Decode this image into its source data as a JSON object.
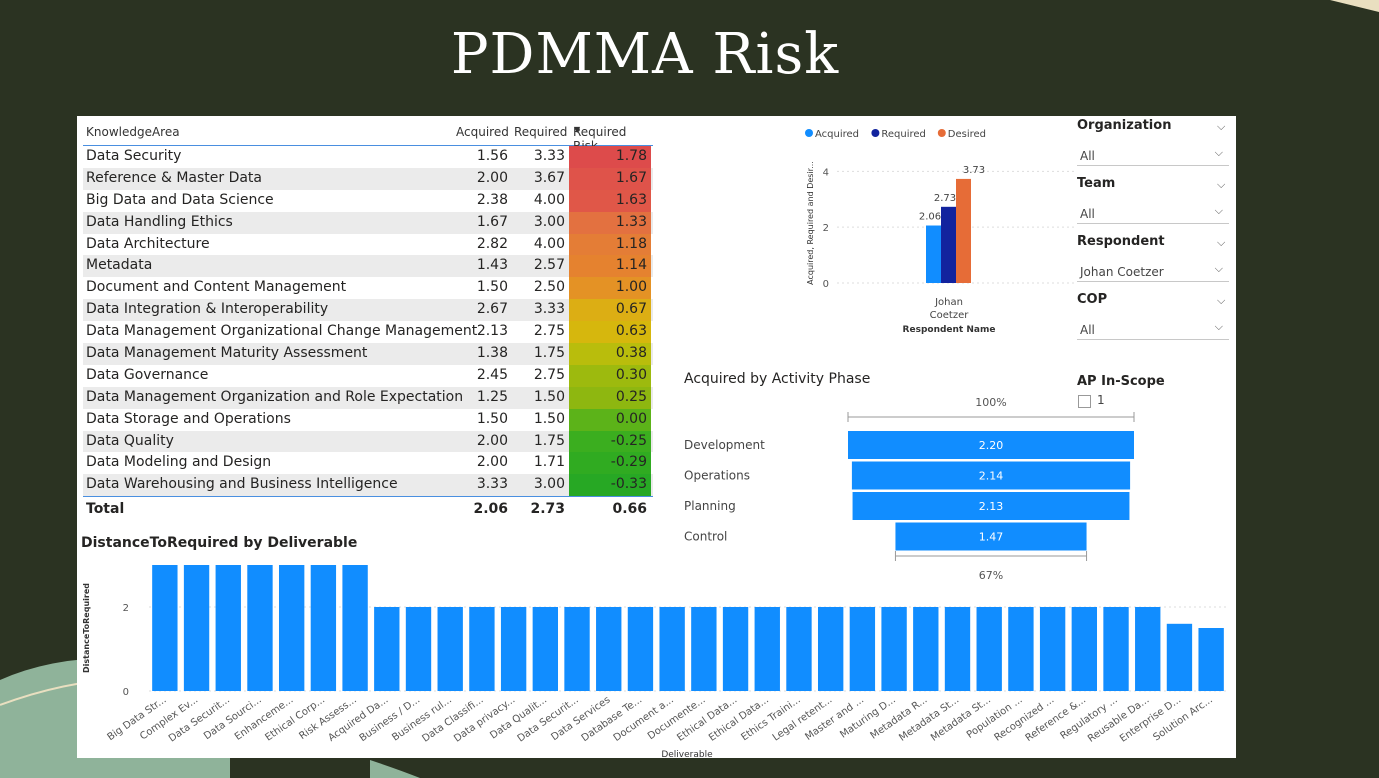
{
  "slide": {
    "title": "PDMMA Risk"
  },
  "table": {
    "headers": {
      "area": "KnowledgeArea",
      "acquired": "Acquired",
      "required": "Required",
      "risk": "Required Risk"
    },
    "rows": [
      {
        "area": "Data Security",
        "acquired": "1.56",
        "required": "3.33",
        "risk": "1.78",
        "color": "#dd4b4b"
      },
      {
        "area": "Reference & Master Data",
        "acquired": "2.00",
        "required": "3.67",
        "risk": "1.67",
        "color": "#df534a"
      },
      {
        "area": "Big Data and Data Science",
        "acquired": "2.38",
        "required": "4.00",
        "risk": "1.63",
        "color": "#e05748"
      },
      {
        "area": "Data Handling Ethics",
        "acquired": "1.67",
        "required": "3.00",
        "risk": "1.33",
        "color": "#e37140"
      },
      {
        "area": "Data Architecture",
        "acquired": "2.82",
        "required": "4.00",
        "risk": "1.18",
        "color": "#e47d36"
      },
      {
        "area": "Metadata",
        "acquired": "1.43",
        "required": "2.57",
        "risk": "1.14",
        "color": "#e5822f"
      },
      {
        "area": "Document and Content Management",
        "acquired": "1.50",
        "required": "2.50",
        "risk": "1.00",
        "color": "#e49225"
      },
      {
        "area": "Data Integration & Interoperability",
        "acquired": "2.67",
        "required": "3.33",
        "risk": "0.67",
        "color": "#dcae14"
      },
      {
        "area": "Data Management Organizational Change Management",
        "acquired": "2.13",
        "required": "2.75",
        "risk": "0.63",
        "color": "#d6b70d"
      },
      {
        "area": "Data Management Maturity Assessment",
        "acquired": "1.38",
        "required": "1.75",
        "risk": "0.38",
        "color": "#b9bd0c"
      },
      {
        "area": "Data Governance",
        "acquired": "2.45",
        "required": "2.75",
        "risk": "0.30",
        "color": "#9dba0e"
      },
      {
        "area": "Data Management Organization and Role Expectation",
        "acquired": "1.25",
        "required": "1.50",
        "risk": "0.25",
        "color": "#8eb710"
      },
      {
        "area": "Data Storage and Operations",
        "acquired": "1.50",
        "required": "1.50",
        "risk": "0.00",
        "color": "#5cb319"
      },
      {
        "area": "Data Quality",
        "acquired": "2.00",
        "required": "1.75",
        "risk": "-0.25",
        "color": "#3bae1f"
      },
      {
        "area": "Data Modeling and Design",
        "acquired": "2.00",
        "required": "1.71",
        "risk": "-0.29",
        "color": "#30ab21"
      },
      {
        "area": "Data Warehousing and Business Intelligence",
        "acquired": "3.33",
        "required": "3.00",
        "risk": "-0.33",
        "color": "#27a824"
      }
    ],
    "total": {
      "label": "Total",
      "acquired": "2.06",
      "required": "2.73",
      "risk": "0.66"
    }
  },
  "filters": [
    {
      "label": "Organization",
      "value": "All"
    },
    {
      "label": "Team",
      "value": "All"
    },
    {
      "label": "Respondent",
      "value": "Johan Coetzer"
    },
    {
      "label": "COP",
      "value": "All"
    }
  ],
  "ap_scope": {
    "label": "AP In-Scope",
    "option": "1"
  },
  "colors": {
    "acquired": "#118dff",
    "required": "#12239e",
    "desired": "#e66c37"
  },
  "chart_data": [
    {
      "type": "bar",
      "title": "",
      "legend": [
        "Acquired",
        "Required",
        "Desired"
      ],
      "legend_position": "top",
      "categories": [
        "Johan Coetzer"
      ],
      "series": [
        {
          "name": "Acquired",
          "values": [
            2.06
          ]
        },
        {
          "name": "Required",
          "values": [
            2.73
          ]
        },
        {
          "name": "Desired",
          "values": [
            3.73
          ]
        }
      ],
      "data_labels": [
        "2.06",
        "2.73",
        "3.73"
      ],
      "xlabel": "Respondent Name",
      "ylabel": "Acquired, Required and Desir...",
      "yticks": [
        "0",
        "2",
        "4"
      ],
      "ylim": [
        0,
        4.3
      ]
    },
    {
      "type": "funnel",
      "title": "Acquired by Activity Phase",
      "categories": [
        "Development",
        "Operations",
        "Planning",
        "Control"
      ],
      "values": [
        2.2,
        2.14,
        2.13,
        1.47
      ],
      "data_labels": [
        "2.20",
        "2.14",
        "2.13",
        "1.47"
      ],
      "top_percent": "100%",
      "bottom_percent": "67%"
    },
    {
      "type": "bar",
      "title": "DistanceToRequired by Deliverable",
      "xlabel": "Deliverable",
      "ylabel": "DistanceToRequired",
      "yticks": [
        "0",
        "2"
      ],
      "ylim": [
        0,
        3.2
      ],
      "categories": [
        "Big Data Str...",
        "Complex Ev...",
        "Data Securit...",
        "Data Sourci...",
        "Enhanceme...",
        "Ethical Corp...",
        "Risk Assess...",
        "Acquired Da...",
        "Business / D...",
        "Business rul...",
        "Data Classifi...",
        "Data privacy...",
        "Data Qualit...",
        "Data Securit...",
        "Data Services",
        "Database Te...",
        "Document a...",
        "Documente...",
        "Ethical Data...",
        "Ethical Data...",
        "Ethics Traini...",
        "Legal retent...",
        "Master and ...",
        "Maturing D...",
        "Metadata R...",
        "Metadata St...",
        "Metadata St...",
        "Population ...",
        "Recognized ...",
        "Reference &...",
        "Regulatory ...",
        "Reusable Da...",
        "Enterprise D...",
        "Solution Arc..."
      ],
      "values": [
        3,
        3,
        3,
        3,
        3,
        3,
        3,
        2,
        2,
        2,
        2,
        2,
        2,
        2,
        2,
        2,
        2,
        2,
        2,
        2,
        2,
        2,
        2,
        2,
        2,
        2,
        2,
        2,
        2,
        2,
        2,
        2,
        1.6,
        1.5
      ]
    }
  ]
}
